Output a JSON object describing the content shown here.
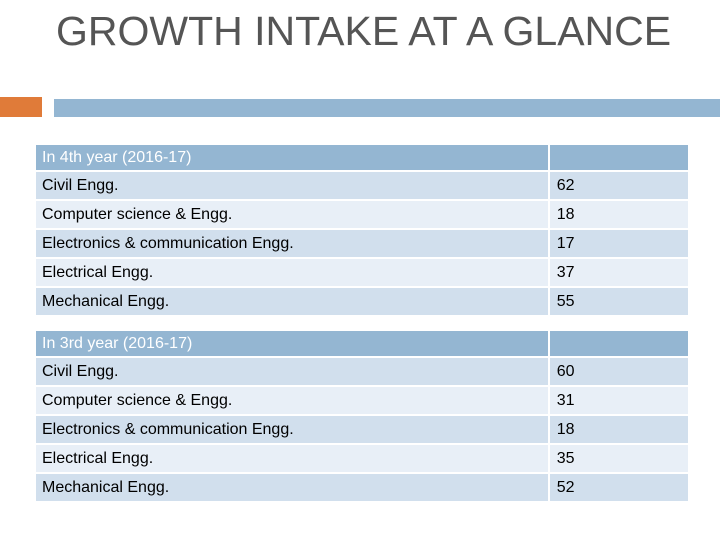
{
  "slide": {
    "title": "GROWTH INTAKE AT A GLANCE"
  },
  "colors": {
    "accent": "#e07b39",
    "header": "#94b6d2",
    "row_dark": "#d1dfed",
    "row_light": "#e8eff7"
  },
  "tables": [
    {
      "heading": "In 4th year (2016-17)",
      "rows": [
        {
          "branch": "Civil Engg.",
          "intake": "62"
        },
        {
          "branch": "Computer science & Engg.",
          "intake": "18"
        },
        {
          "branch": "Electronics  & communication Engg.",
          "intake": "17"
        },
        {
          "branch": "Electrical Engg.",
          "intake": "37"
        },
        {
          "branch": "Mechanical Engg.",
          "intake": "55"
        }
      ]
    },
    {
      "heading": "In 3rd year (2016-17)",
      "rows": [
        {
          "branch": "Civil Engg.",
          "intake": "60"
        },
        {
          "branch": "Computer science & Engg.",
          "intake": "31"
        },
        {
          "branch": "Electronics  & communication Engg.",
          "intake": "18"
        },
        {
          "branch": "Electrical Engg.",
          "intake": "35"
        },
        {
          "branch": "Mechanical Engg.",
          "intake": "52"
        }
      ]
    }
  ]
}
